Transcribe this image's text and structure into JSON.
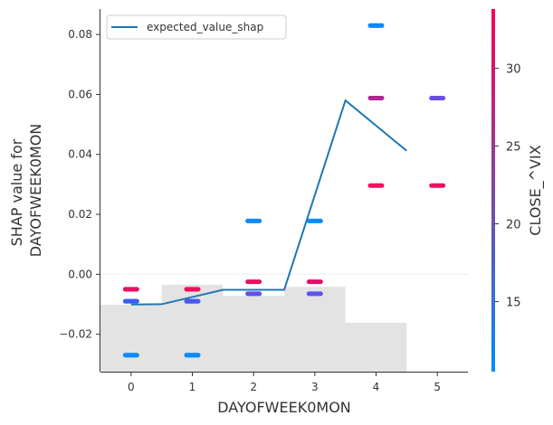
{
  "chart_data": {
    "type": "scatter",
    "xlabel": "DAYOFWEEK0MON",
    "ylabel_lines": [
      "SHAP value for",
      "DAYOFWEEK0MON"
    ],
    "xlim": [
      -0.5,
      5.5
    ],
    "ylim": [
      -0.0325,
      0.0885
    ],
    "x_ticks": [
      0,
      1,
      2,
      3,
      4,
      5
    ],
    "x_tick_labels": [
      "0",
      "1",
      "2",
      "3",
      "4",
      "5"
    ],
    "y_ticks": [
      -0.02,
      0.0,
      0.02,
      0.04,
      0.06,
      0.08
    ],
    "y_tick_labels": [
      "−0.02",
      "0.00",
      "0.02",
      "0.04",
      "0.06",
      "0.08"
    ],
    "zero_line": 0.0,
    "histogram": {
      "color": "#e3e3e3",
      "edges": [
        -0.5,
        0.5,
        1.5,
        2.5,
        3.5,
        4.5
      ],
      "tops": [
        -0.0102,
        -0.0035,
        -0.0072,
        -0.0042,
        -0.0162
      ],
      "base": -0.0325
    },
    "series": [
      {
        "name": "expected_value_shap",
        "type": "line",
        "color": "#1f77b4",
        "x": [
          0,
          0.5,
          1.5,
          2.5,
          3.5,
          4.5
        ],
        "y": [
          -0.0101,
          -0.01,
          -0.0052,
          -0.0052,
          0.058,
          0.0412
        ]
      }
    ],
    "scatter_groups": [
      {
        "x": 0,
        "y": -0.005,
        "color": "#ee0e62"
      },
      {
        "x": 0,
        "y": -0.009,
        "color": "#3a5ef0"
      },
      {
        "x": 0,
        "y": -0.027,
        "color": "#0a8bf7"
      },
      {
        "x": 1,
        "y": -0.005,
        "color": "#ee0e62"
      },
      {
        "x": 1,
        "y": -0.009,
        "color": "#4b57ee"
      },
      {
        "x": 1,
        "y": -0.027,
        "color": "#0a8bf7"
      },
      {
        "x": 2,
        "y": 0.0178,
        "color": "#0a8bf7"
      },
      {
        "x": 2,
        "y": -0.0025,
        "color": "#ee0e62"
      },
      {
        "x": 2,
        "y": -0.0065,
        "color": "#6a4ce8"
      },
      {
        "x": 3,
        "y": 0.0178,
        "color": "#0a8bf7"
      },
      {
        "x": 3,
        "y": -0.0025,
        "color": "#e0116c"
      },
      {
        "x": 3,
        "y": -0.0065,
        "color": "#5b52ec"
      },
      {
        "x": 4,
        "y": 0.083,
        "color": "#0a8bf7"
      },
      {
        "x": 4,
        "y": 0.0588,
        "color": "#b32596"
      },
      {
        "x": 4,
        "y": 0.0296,
        "color": "#ee0e62"
      },
      {
        "x": 5,
        "y": 0.0588,
        "color": "#6a4ce8"
      },
      {
        "x": 5,
        "y": 0.0296,
        "color": "#ee0e62"
      }
    ],
    "legend": {
      "placement": "upper-left",
      "entries": [
        "expected_value_shap"
      ]
    },
    "colorbar": {
      "label": "CLOSE_^VIX",
      "range": [
        10.5,
        33.8
      ],
      "ticks": [
        15,
        20,
        25,
        30
      ],
      "tick_labels": [
        "15",
        "20",
        "25",
        "30"
      ],
      "colors": [
        "#008bfb",
        "#ff0052"
      ]
    }
  }
}
